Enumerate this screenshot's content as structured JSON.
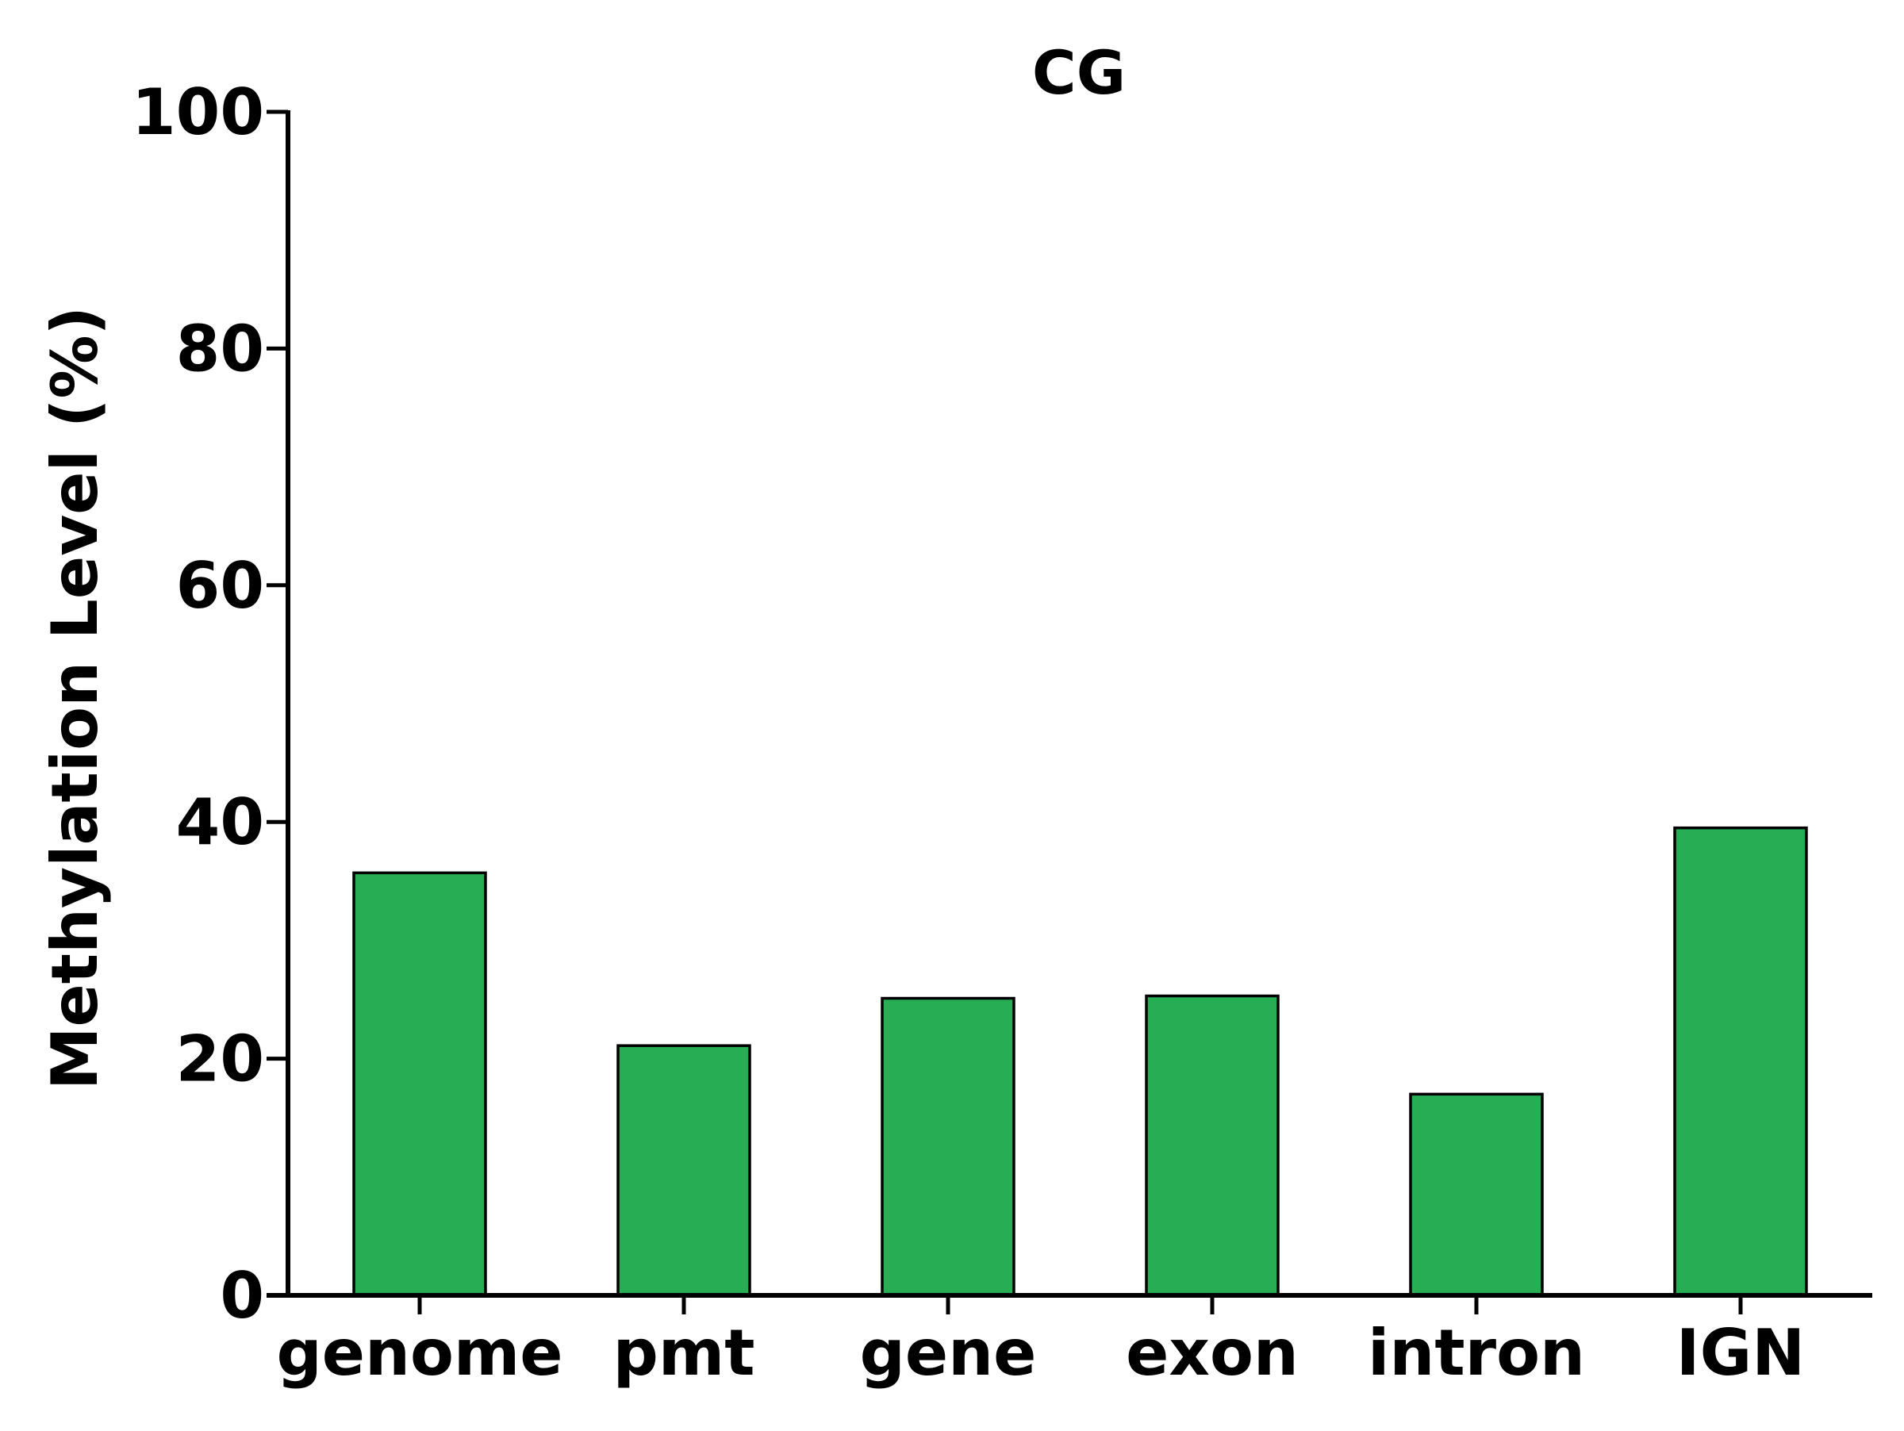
{
  "chart_data": {
    "type": "bar",
    "title": "CG",
    "xlabel": "",
    "ylabel": "Methylation Level (%)",
    "categories": [
      "genome",
      "pmt",
      "gene",
      "exon",
      "intron",
      "IGN"
    ],
    "values": [
      35.7,
      21.1,
      25.1,
      25.3,
      17.0,
      39.5
    ],
    "ylim": [
      0,
      100
    ],
    "yticks": [
      0,
      20,
      40,
      60,
      80,
      100
    ],
    "grid": false,
    "legend": "none",
    "colors": {
      "bar_fill": "#27ae55",
      "bar_edge": "#000000",
      "axis": "#000000"
    }
  }
}
